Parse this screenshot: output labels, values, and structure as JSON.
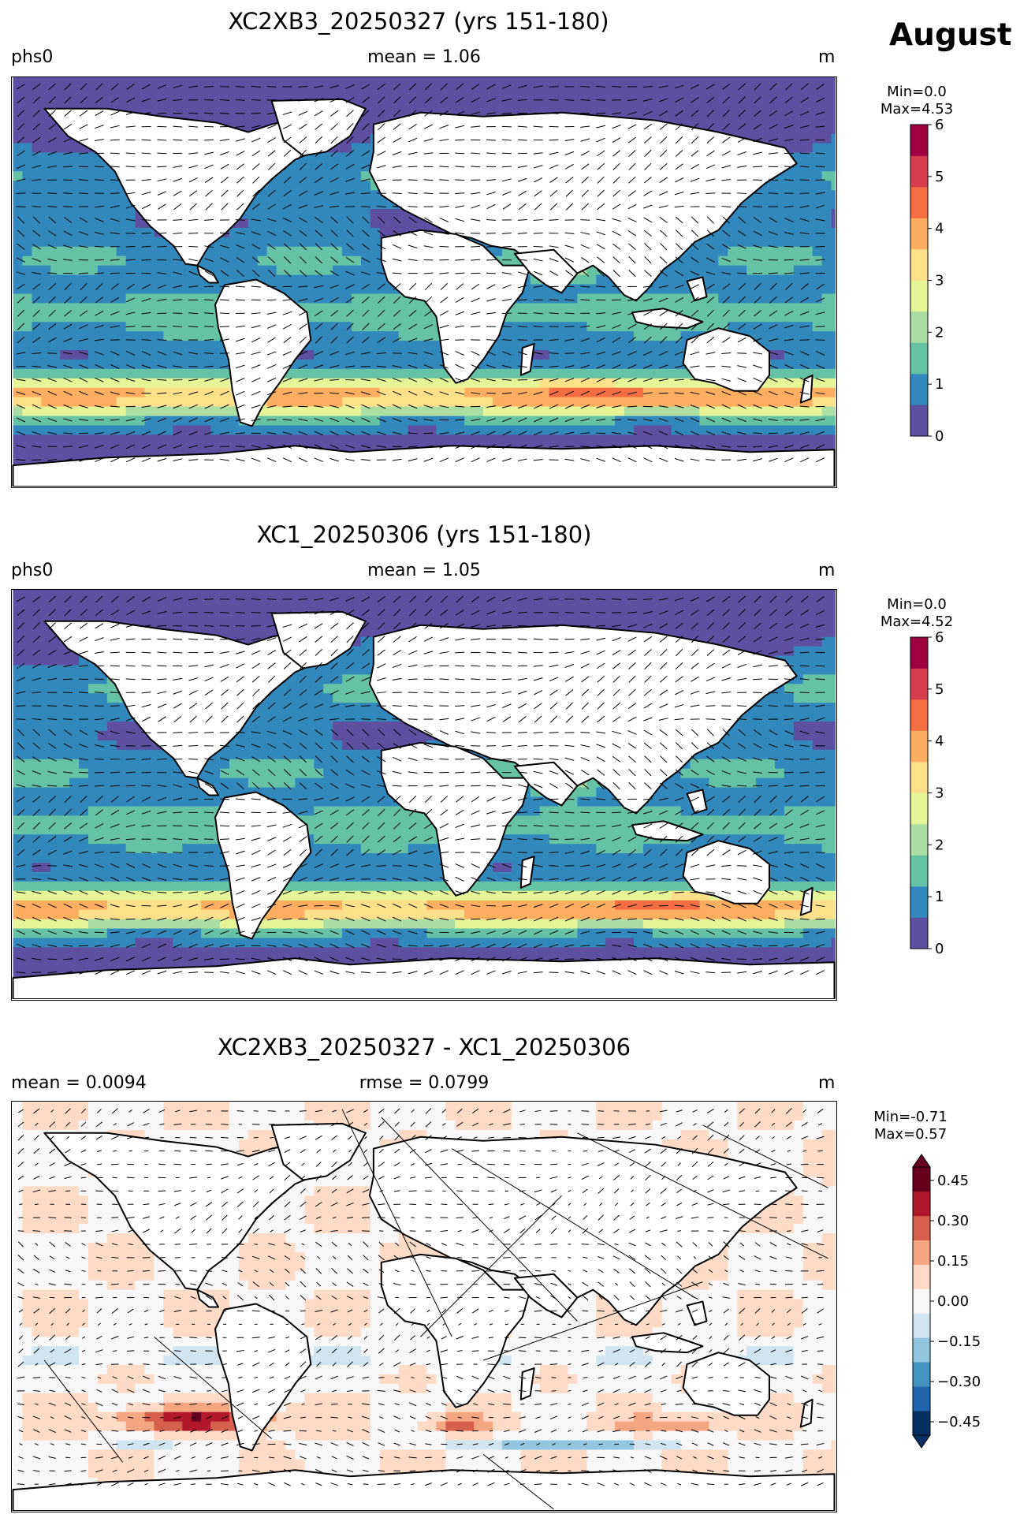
{
  "month": "August",
  "panels": [
    {
      "title": "XC2XB3_20250327 (yrs 151-180)",
      "left_label": "phs0",
      "center_label": "mean = 1.06",
      "unit": "m",
      "min_label": "Min=0.0",
      "max_label": "Max=4.53",
      "colorbar": {
        "type": "sequential",
        "range": [
          0,
          6
        ],
        "ticks": [
          "0",
          "1",
          "2",
          "3",
          "4",
          "5",
          "6"
        ],
        "colors": [
          "#5e4fa2",
          "#3288bd",
          "#66c2a5",
          "#abdda4",
          "#e6f598",
          "#fee08b",
          "#fdae61",
          "#f46d43",
          "#d53e4f",
          "#9e0142"
        ]
      }
    },
    {
      "title": "XC1_20250306 (yrs 151-180)",
      "left_label": "phs0",
      "center_label": "mean = 1.05",
      "unit": "m",
      "min_label": "Min=0.0",
      "max_label": "Max=4.52",
      "colorbar": {
        "type": "sequential",
        "range": [
          0,
          6
        ],
        "ticks": [
          "0",
          "1",
          "2",
          "3",
          "4",
          "5",
          "6"
        ],
        "colors": [
          "#5e4fa2",
          "#3288bd",
          "#66c2a5",
          "#abdda4",
          "#e6f598",
          "#fee08b",
          "#fdae61",
          "#f46d43",
          "#d53e4f",
          "#9e0142"
        ]
      }
    },
    {
      "title": "XC2XB3_20250327 - XC1_20250306",
      "left_label": "mean = 0.0094",
      "center_label": "rmse = 0.0799",
      "unit": "m",
      "min_label": "Min=-0.71",
      "max_label": "Max=0.57",
      "colorbar": {
        "type": "diverging",
        "range": [
          -0.5,
          0.5
        ],
        "ticks": [
          "−0.45",
          "−0.30",
          "−0.15",
          "0.00",
          "0.15",
          "0.30",
          "0.45"
        ],
        "tick_values": [
          -0.45,
          -0.3,
          -0.15,
          0.0,
          0.15,
          0.3,
          0.45
        ],
        "colors": [
          "#053061",
          "#2166ac",
          "#4393c3",
          "#92c5de",
          "#d1e5f0",
          "#f7f7f7",
          "#fddbc7",
          "#f4a582",
          "#d6604d",
          "#b2182b",
          "#67001f"
        ]
      }
    }
  ],
  "colors": {
    "land": "#ffffff",
    "coast": "#000000",
    "arrows": "#000000"
  }
}
